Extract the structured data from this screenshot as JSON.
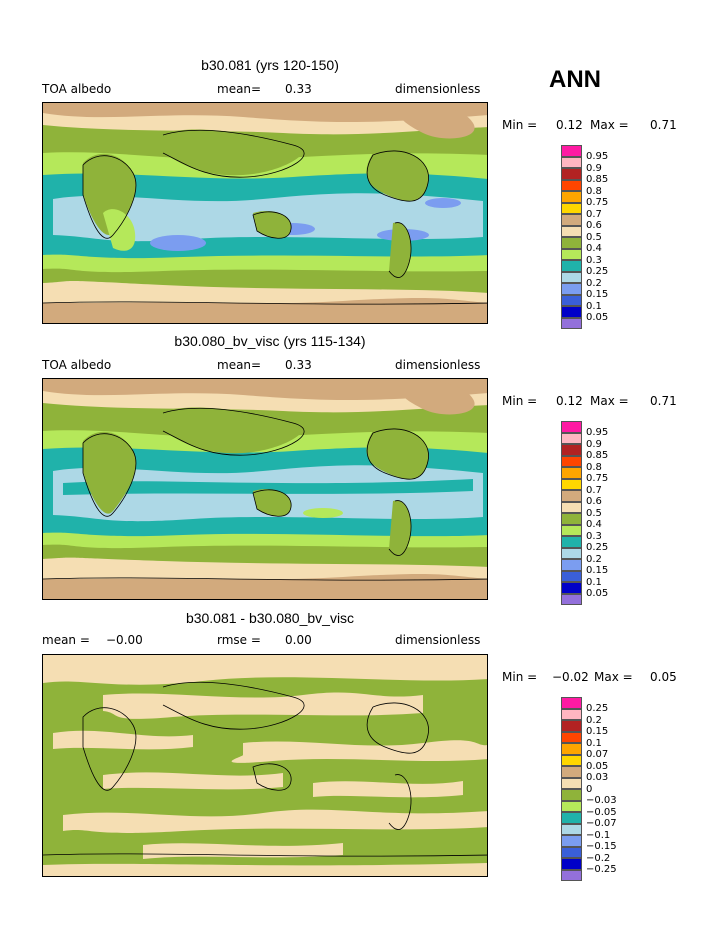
{
  "season": "ANN",
  "panels": [
    {
      "title": "b30.081 (yrs 120-150)",
      "left_label": "TOA albedo",
      "mean_label": "mean=",
      "mean_value": "0.33",
      "units": "dimensionless",
      "min_label": "Min =",
      "min_value": "0.12",
      "max_label": "Max =",
      "max_value": "0.71",
      "legend": [
        "0.95",
        "0.9",
        "0.85",
        "0.8",
        "0.75",
        "0.7",
        "0.6",
        "0.5",
        "0.4",
        "0.3",
        "0.25",
        "0.2",
        "0.15",
        "0.1",
        "0.05"
      ],
      "colors": [
        "#ff1aa3",
        "#ffb6c1",
        "#b22222",
        "#ff4500",
        "#ffa500",
        "#ffd700",
        "#d2aa7d",
        "#f5deb3",
        "#8fb33a",
        "#b5e85a",
        "#20b2aa",
        "#add8e6",
        "#7b9df0",
        "#3a5fd8",
        "#0000c8",
        "#9370db"
      ]
    },
    {
      "title": "b30.080_bv_visc (yrs 115-134)",
      "left_label": "TOA albedo",
      "mean_label": "mean=",
      "mean_value": "0.33",
      "units": "dimensionless",
      "min_label": "Min =",
      "min_value": "0.12",
      "max_label": "Max =",
      "max_value": "0.71",
      "legend": [
        "0.95",
        "0.9",
        "0.85",
        "0.8",
        "0.75",
        "0.7",
        "0.6",
        "0.5",
        "0.4",
        "0.3",
        "0.25",
        "0.2",
        "0.15",
        "0.1",
        "0.05"
      ],
      "colors": [
        "#ff1aa3",
        "#ffb6c1",
        "#b22222",
        "#ff4500",
        "#ffa500",
        "#ffd700",
        "#d2aa7d",
        "#f5deb3",
        "#8fb33a",
        "#b5e85a",
        "#20b2aa",
        "#add8e6",
        "#7b9df0",
        "#3a5fd8",
        "#0000c8",
        "#9370db"
      ]
    },
    {
      "title": "b30.081 - b30.080_bv_visc",
      "left_label": "mean =",
      "left_value": "−0.00",
      "mean_label": "rmse =",
      "mean_value": "0.00",
      "units": "dimensionless",
      "min_label": "Min =",
      "min_value": "−0.02",
      "max_label": "Max =",
      "max_value": "0.05",
      "legend": [
        "0.25",
        "0.2",
        "0.15",
        "0.1",
        "0.07",
        "0.05",
        "0.03",
        "0",
        "−0.03",
        "−0.05",
        "−0.07",
        "−0.1",
        "−0.15",
        "−0.2",
        "−0.25"
      ],
      "colors": [
        "#ff1aa3",
        "#ffb6c1",
        "#b22222",
        "#ff4500",
        "#ffa500",
        "#ffd700",
        "#d2aa7d",
        "#f5deb3",
        "#8fb33a",
        "#b5e85a",
        "#20b2aa",
        "#add8e6",
        "#7b9df0",
        "#3a5fd8",
        "#0000c8",
        "#9370db"
      ]
    }
  ]
}
